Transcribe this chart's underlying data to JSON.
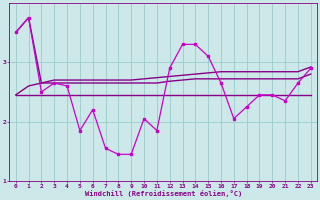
{
  "xlabel": "Windchill (Refroidissement éolien,°C)",
  "bg_color": "#cce8e8",
  "grid_color": "#99cccc",
  "line_color_main": "#cc00cc",
  "line_color_smooth": "#880088",
  "x": [
    0,
    1,
    2,
    3,
    4,
    5,
    6,
    7,
    8,
    9,
    10,
    11,
    12,
    13,
    14,
    15,
    16,
    17,
    18,
    19,
    20,
    21,
    22,
    23
  ],
  "y_main": [
    3.5,
    3.75,
    2.5,
    2.65,
    2.6,
    1.85,
    2.2,
    1.55,
    1.45,
    1.45,
    2.05,
    1.85,
    2.9,
    3.3,
    3.3,
    3.1,
    2.65,
    2.05,
    2.25,
    2.45,
    2.45,
    2.35,
    2.65,
    2.9
  ],
  "y_flat": [
    2.45,
    2.45,
    2.45,
    2.45,
    2.45,
    2.45,
    2.45,
    2.45,
    2.45,
    2.45,
    2.45,
    2.45,
    2.45,
    2.45,
    2.45,
    2.45,
    2.45,
    2.45,
    2.45,
    2.45,
    2.45,
    2.45,
    2.45,
    2.45
  ],
  "y_mid": [
    2.45,
    2.6,
    2.65,
    2.65,
    2.65,
    2.65,
    2.65,
    2.65,
    2.65,
    2.65,
    2.65,
    2.65,
    2.68,
    2.7,
    2.72,
    2.72,
    2.72,
    2.72,
    2.72,
    2.72,
    2.72,
    2.72,
    2.72,
    2.8
  ],
  "y_upper": [
    3.5,
    3.75,
    2.65,
    2.7,
    2.7,
    2.7,
    2.7,
    2.7,
    2.7,
    2.7,
    2.72,
    2.74,
    2.76,
    2.78,
    2.8,
    2.82,
    2.84,
    2.84,
    2.84,
    2.84,
    2.84,
    2.84,
    2.84,
    2.92
  ],
  "xlim": [
    -0.5,
    23.5
  ],
  "ylim": [
    1.0,
    4.0
  ],
  "yticks": [
    1,
    2,
    3
  ],
  "xticks": [
    0,
    1,
    2,
    3,
    4,
    5,
    6,
    7,
    8,
    9,
    10,
    11,
    12,
    13,
    14,
    15,
    16,
    17,
    18,
    19,
    20,
    21,
    22,
    23
  ]
}
